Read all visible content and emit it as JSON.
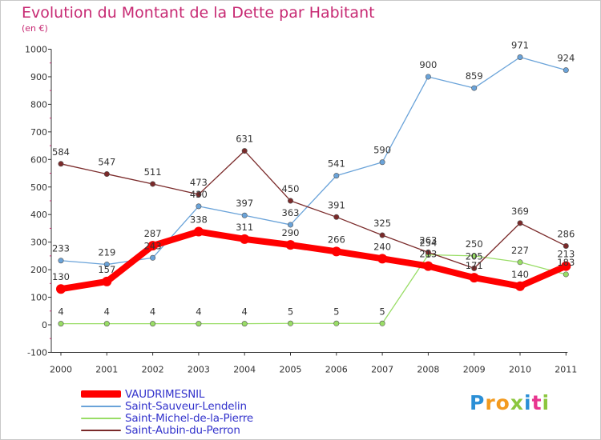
{
  "chart_data": {
    "type": "line",
    "title": "Evolution du Montant de la Dette par Habitant",
    "unit": "(en €)",
    "x": [
      "2000",
      "2001",
      "2002",
      "2003",
      "2004",
      "2005",
      "2006",
      "2007",
      "2008",
      "2009",
      "2010",
      "2011"
    ],
    "ylim": [
      -100,
      1000
    ],
    "yticks": [
      -100,
      0,
      100,
      200,
      300,
      400,
      500,
      600,
      700,
      800,
      900,
      1000
    ],
    "grid": false,
    "legend_position": "bottom-left",
    "series": [
      {
        "name": "VAUDRIMESNIL",
        "color": "#ff0000",
        "values": [
          130,
          157,
          287,
          338,
          311,
          290,
          266,
          240,
          213,
          171,
          140,
          213
        ],
        "labels": [
          "130",
          "157",
          "287",
          "338",
          "311",
          "290",
          "266",
          "240",
          "213",
          "171",
          "140",
          "213"
        ]
      },
      {
        "name": "Saint-Sauveur-Lendelin",
        "color": "#6aa3d9",
        "values": [
          233,
          219,
          243,
          430,
          397,
          363,
          541,
          590,
          900,
          859,
          971,
          924
        ],
        "labels": [
          "233",
          "219",
          "243",
          "430",
          "397",
          "363",
          "541",
          "590",
          "900",
          "859",
          "971",
          "924"
        ]
      },
      {
        "name": "Saint-Michel-de-la-Pierre",
        "color": "#99dd66",
        "values": [
          4,
          4,
          4,
          4,
          4,
          5,
          5,
          5,
          254,
          250,
          227,
          183
        ],
        "labels": [
          "4",
          "4",
          "4",
          "4",
          "4",
          "5",
          "5",
          "5",
          "254",
          "250",
          "227",
          "183"
        ]
      },
      {
        "name": "Saint-Aubin-du-Perron",
        "color": "#7a2a2a",
        "values": [
          584,
          547,
          511,
          473,
          631,
          450,
          391,
          325,
          263,
          205,
          369,
          286
        ],
        "labels": [
          "584",
          "547",
          "511",
          "473",
          "631",
          "450",
          "391",
          "325",
          "263",
          "205",
          "369",
          "286"
        ]
      }
    ]
  },
  "logo": {
    "letters": [
      {
        "char": "P",
        "color": "#2b8fd6"
      },
      {
        "char": "r",
        "color": "#f39a1e"
      },
      {
        "char": "o",
        "color": "#f39a1e"
      },
      {
        "char": "x",
        "color": "#8cc63e"
      },
      {
        "char": "i",
        "color": "#2b8fd6"
      },
      {
        "char": "t",
        "color": "#e8358f"
      },
      {
        "char": "i",
        "color": "#8cc63e"
      }
    ]
  }
}
